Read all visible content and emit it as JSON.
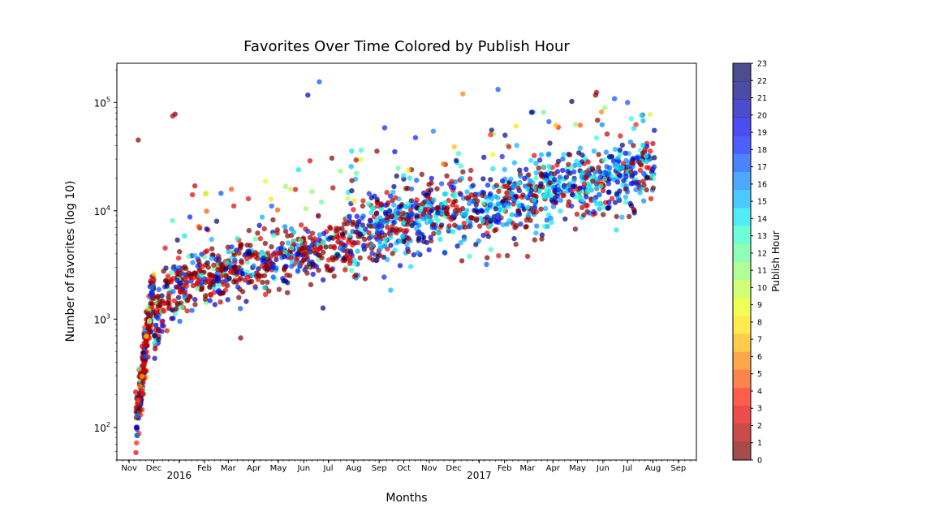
{
  "chart_data": {
    "type": "scatter",
    "title": "Favorites Over Time Colored by Publish Hour",
    "xlabel": "Months",
    "ylabel": "Number of favorites (log 10)",
    "y_scale": "log",
    "ylim": [
      50,
      230000
    ],
    "xlim": [
      "2015-10-17",
      "2017-09-23"
    ],
    "x_ticks": [
      {
        "date": "2015-11-01",
        "label": "Nov"
      },
      {
        "date": "2015-12-01",
        "label": "Dec"
      },
      {
        "date": "2016-01-01",
        "label": "2016"
      },
      {
        "date": "2016-02-01",
        "label": "Feb"
      },
      {
        "date": "2016-03-01",
        "label": "Mar"
      },
      {
        "date": "2016-04-01",
        "label": "Apr"
      },
      {
        "date": "2016-05-01",
        "label": "May"
      },
      {
        "date": "2016-06-01",
        "label": "Jun"
      },
      {
        "date": "2016-07-01",
        "label": "Jul"
      },
      {
        "date": "2016-08-01",
        "label": "Aug"
      },
      {
        "date": "2016-09-01",
        "label": "Sep"
      },
      {
        "date": "2016-10-01",
        "label": "Oct"
      },
      {
        "date": "2016-11-01",
        "label": "Nov"
      },
      {
        "date": "2016-12-01",
        "label": "Dec"
      },
      {
        "date": "2017-01-01",
        "label": "2017"
      },
      {
        "date": "2017-02-01",
        "label": "Feb"
      },
      {
        "date": "2017-03-01",
        "label": "Mar"
      },
      {
        "date": "2017-04-01",
        "label": "Apr"
      },
      {
        "date": "2017-05-01",
        "label": "May"
      },
      {
        "date": "2017-06-01",
        "label": "Jun"
      },
      {
        "date": "2017-07-01",
        "label": "Jul"
      },
      {
        "date": "2017-08-01",
        "label": "Aug"
      },
      {
        "date": "2017-09-01",
        "label": "Sep"
      }
    ],
    "y_ticks": [
      {
        "value": 100,
        "base": "10",
        "exp": "2"
      },
      {
        "value": 1000,
        "base": "10",
        "exp": "3"
      },
      {
        "value": 10000,
        "base": "10",
        "exp": "4"
      },
      {
        "value": 100000,
        "base": "10",
        "exp": "5"
      }
    ],
    "colorbar": {
      "label": "Publish Hour",
      "colormap": "jet_r",
      "min": 0,
      "max": 23,
      "ticks": [
        "0",
        "1",
        "2",
        "3",
        "4",
        "5",
        "6",
        "7",
        "8",
        "9",
        "10",
        "11",
        "12",
        "13",
        "14",
        "15",
        "16",
        "17",
        "18",
        "19",
        "20",
        "21",
        "22",
        "23"
      ],
      "colors": [
        "#800000",
        "#b20000",
        "#e60000",
        "#ff1a00",
        "#ff4e00",
        "#ff8200",
        "#ffb600",
        "#ffe400",
        "#eaff0d",
        "#bdff3a",
        "#8dff6a",
        "#60ff97",
        "#30ffc7",
        "#03e6f3",
        "#00b4ff",
        "#0084ff",
        "#0050ff",
        "#001cff",
        "#0000ea",
        "#0000b6",
        "#000080",
        "#000060"
      ]
    },
    "alpha": 0.7,
    "point_count_note": "",
    "series_summary": [
      {
        "period": "2015-11",
        "median_favorites": 300
      },
      {
        "period": "2015-12",
        "median_favorites": 1600
      },
      {
        "period": "2016-01",
        "median_favorites": 2400
      },
      {
        "period": "2016-02",
        "median_favorites": 2600
      },
      {
        "period": "2016-03",
        "median_favorites": 2900
      },
      {
        "period": "2016-04",
        "median_favorites": 3300
      },
      {
        "period": "2016-05",
        "median_favorites": 3700
      },
      {
        "period": "2016-06",
        "median_favorites": 4100
      },
      {
        "period": "2016-07",
        "median_favorites": 4600
      },
      {
        "period": "2016-08",
        "median_favorites": 5800
      },
      {
        "period": "2016-09",
        "median_favorites": 8000
      },
      {
        "period": "2016-10",
        "median_favorites": 9200
      },
      {
        "period": "2016-11",
        "median_favorites": 9500
      },
      {
        "period": "2016-12",
        "median_favorites": 9800
      },
      {
        "period": "2017-01",
        "median_favorites": 10500
      },
      {
        "period": "2017-02",
        "median_favorites": 12500
      },
      {
        "period": "2017-03",
        "median_favorites": 15000
      },
      {
        "period": "2017-04",
        "median_favorites": 17000
      },
      {
        "period": "2017-05",
        "median_favorites": 19000
      },
      {
        "period": "2017-06",
        "median_favorites": 21000
      },
      {
        "period": "2017-07",
        "median_favorites": 23000
      },
      {
        "period": "2017-08",
        "median_favorites": 25000
      }
    ],
    "notable_points": [
      {
        "date": "2015-11-10",
        "favorites": 72,
        "hour": 4
      },
      {
        "date": "2015-11-12",
        "favorites": 45000,
        "hour": 1
      },
      {
        "date": "2015-12-27",
        "favorites": 78000,
        "hour": 1
      },
      {
        "date": "2015-12-24",
        "favorites": 75000,
        "hour": 2
      },
      {
        "date": "2016-06-06",
        "favorites": 117000,
        "hour": 21
      },
      {
        "date": "2016-06-20",
        "favorites": 155000,
        "hour": 18
      },
      {
        "date": "2016-12-12",
        "favorites": 120000,
        "hour": 6
      },
      {
        "date": "2017-01-24",
        "favorites": 132000,
        "hour": 18
      },
      {
        "date": "2017-05-23",
        "favorites": 117000,
        "hour": 1
      },
      {
        "date": "2017-07-01",
        "favorites": 100000,
        "hour": 18
      },
      {
        "date": "2016-03-16",
        "favorites": 670,
        "hour": 1
      },
      {
        "date": "2016-09-15",
        "favorites": 1850,
        "hour": 16
      },
      {
        "date": "2017-03-01",
        "favorites": 3800,
        "hour": 2
      }
    ]
  }
}
